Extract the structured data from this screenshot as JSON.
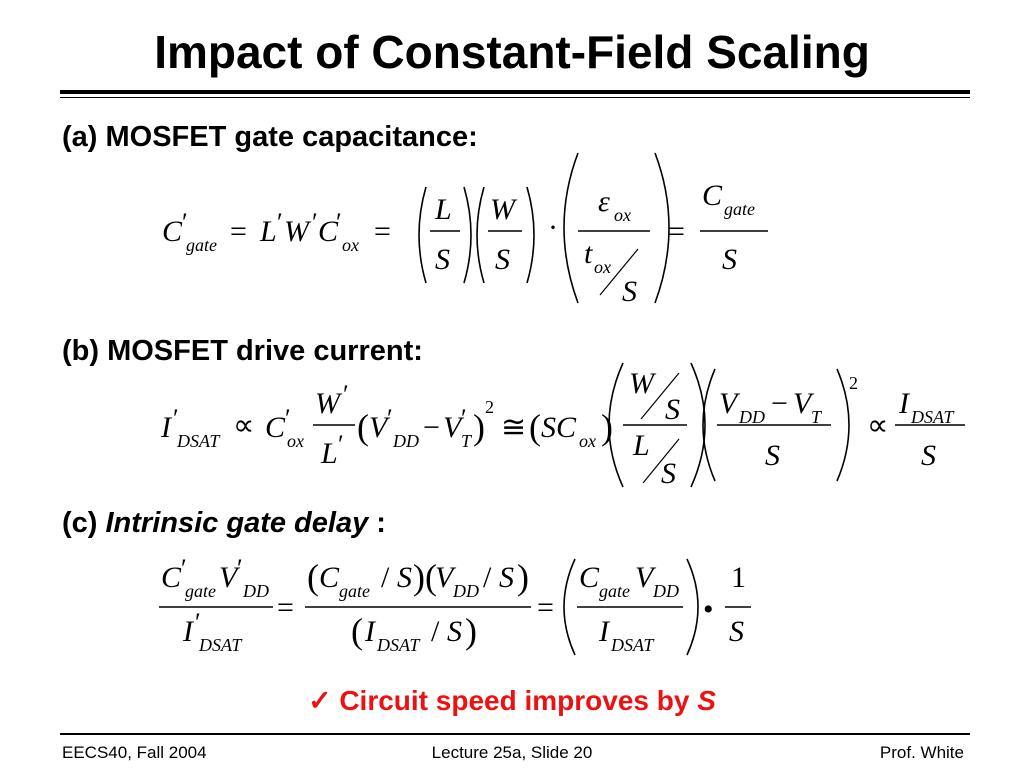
{
  "slide": {
    "title": "Impact of Constant-Field Scaling",
    "sections": {
      "a": "(a) MOSFET gate capacitance:",
      "b": "(b) MOSFET drive current:",
      "c_prefix": "(c) ",
      "c_italic": "Intrinsic gate delay",
      "c_suffix": " :"
    },
    "equations": {
      "a": "C′gate = L′W′C′ox = (L/S)(W/S) · (εox / (tox/S)) = Cgate/S",
      "b": "I′DSAT ∝ C′ox (W′/L′)(V′DD − V′T)² ≅ (SCox)((W/S)/(L/S))((VDD − VT)/S)² ∝ IDSAT/S",
      "c": "C′gateV′DD / I′DSAT = (Cgate/S)(VDD/S) / (IDSAT/S) = (CgateVDD / IDSAT) • 1/S"
    },
    "conclusion": {
      "check": "✓",
      "text": "Circuit speed improves by ",
      "variable": "S"
    },
    "footer": {
      "left": "EECS40, Fall 2004",
      "center": "Lecture 25a, Slide 20",
      "right": "Prof. White"
    }
  }
}
